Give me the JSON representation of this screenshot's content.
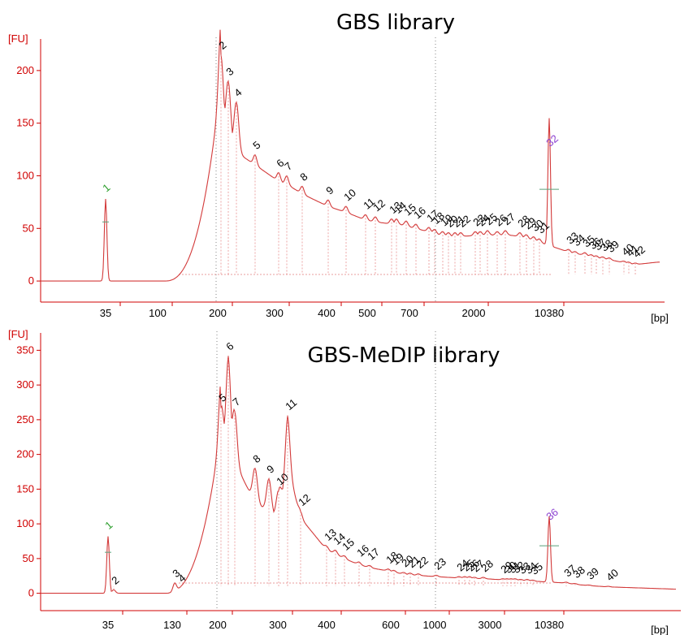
{
  "chart_data": [
    {
      "type": "line",
      "title": "GBS library",
      "ylabel": "[FU]",
      "xlabel": "[bp]",
      "ylim": [
        -20,
        230
      ],
      "yticks": [
        0,
        50,
        100,
        150,
        200
      ],
      "xticks": [
        {
          "label": "35",
          "pos": 130
        },
        {
          "label": "100",
          "pos": 194
        },
        {
          "label": "200",
          "pos": 268
        },
        {
          "label": "300",
          "pos": 338
        },
        {
          "label": "400",
          "pos": 402
        },
        {
          "label": "500",
          "pos": 452
        },
        {
          "label": "700",
          "pos": 504
        },
        {
          "label": "2000",
          "pos": 583
        },
        {
          "label": "10380",
          "pos": 676
        }
      ],
      "marker_peaks": [
        {
          "label": "1",
          "x": 130,
          "y": 78,
          "color": "#2a9d2a"
        },
        {
          "label": "32",
          "x": 676,
          "y": 121,
          "color": "#8a3fd0"
        }
      ],
      "peaks": [
        {
          "label": "2",
          "x": 272,
          "y": 215
        },
        {
          "label": "3",
          "x": 281,
          "y": 190
        },
        {
          "label": "4",
          "x": 291,
          "y": 170
        },
        {
          "label": "5",
          "x": 314,
          "y": 120
        },
        {
          "label": "6",
          "x": 343,
          "y": 103
        },
        {
          "label": "7",
          "x": 353,
          "y": 100
        },
        {
          "label": "8",
          "x": 372,
          "y": 90
        },
        {
          "label": "9",
          "x": 404,
          "y": 77
        },
        {
          "label": "10",
          "x": 426,
          "y": 71
        },
        {
          "label": "11",
          "x": 450,
          "y": 63
        },
        {
          "label": "12",
          "x": 462,
          "y": 61
        },
        {
          "label": "13",
          "x": 482,
          "y": 59
        },
        {
          "label": "14",
          "x": 488,
          "y": 59
        },
        {
          "label": "15",
          "x": 500,
          "y": 57
        },
        {
          "label": "16",
          "x": 512,
          "y": 54
        },
        {
          "label": "17",
          "x": 528,
          "y": 51
        },
        {
          "label": "18",
          "x": 535,
          "y": 49
        },
        {
          "label": "19",
          "x": 545,
          "y": 47
        },
        {
          "label": "20",
          "x": 552,
          "y": 46
        },
        {
          "label": "21",
          "x": 560,
          "y": 46
        },
        {
          "label": "22",
          "x": 567,
          "y": 46
        },
        {
          "label": "23",
          "x": 585,
          "y": 47
        },
        {
          "label": "24",
          "x": 591,
          "y": 47
        },
        {
          "label": "25",
          "x": 600,
          "y": 48
        },
        {
          "label": "26",
          "x": 612,
          "y": 47
        },
        {
          "label": "27",
          "x": 622,
          "y": 48
        },
        {
          "label": "28",
          "x": 640,
          "y": 46
        },
        {
          "label": "29",
          "x": 648,
          "y": 44
        },
        {
          "label": "30",
          "x": 657,
          "y": 42
        },
        {
          "label": "31",
          "x": 664,
          "y": 40
        },
        {
          "label": "33",
          "x": 700,
          "y": 30
        },
        {
          "label": "34",
          "x": 708,
          "y": 28
        },
        {
          "label": "35",
          "x": 720,
          "y": 27
        },
        {
          "label": "36",
          "x": 728,
          "y": 25
        },
        {
          "label": "37",
          "x": 734,
          "y": 24
        },
        {
          "label": "38",
          "x": 742,
          "y": 23
        },
        {
          "label": "39",
          "x": 750,
          "y": 22
        },
        {
          "label": "40",
          "x": 768,
          "y": 19
        },
        {
          "label": "41",
          "x": 774,
          "y": 18
        },
        {
          "label": "42",
          "x": 782,
          "y": 17
        }
      ]
    },
    {
      "type": "line",
      "title": "GBS-MeDIP library",
      "ylabel": "[FU]",
      "xlabel": "[bp]",
      "ylim": [
        -25,
        375
      ],
      "yticks": [
        0,
        50,
        100,
        150,
        200,
        250,
        300,
        350
      ],
      "xticks": [
        {
          "label": "35",
          "pos": 133
        },
        {
          "label": "130",
          "pos": 212
        },
        {
          "label": "200",
          "pos": 268
        },
        {
          "label": "300",
          "pos": 342
        },
        {
          "label": "400",
          "pos": 402
        },
        {
          "label": "600",
          "pos": 481
        },
        {
          "label": "1000",
          "pos": 535
        },
        {
          "label": "3000",
          "pos": 603
        },
        {
          "label": "10380",
          "pos": 676
        }
      ],
      "marker_peaks": [
        {
          "label": "1",
          "x": 133,
          "y": 82,
          "color": "#2a9d2a"
        },
        {
          "label": "36",
          "x": 676,
          "y": 95,
          "color": "#8a3fd0"
        }
      ],
      "peaks": [
        {
          "label": "2",
          "x": 140,
          "y": 5
        },
        {
          "label": "3",
          "x": 215,
          "y": 15
        },
        {
          "label": "4",
          "x": 222,
          "y": 8
        },
        {
          "label": "5",
          "x": 272,
          "y": 268
        },
        {
          "label": "6",
          "x": 281,
          "y": 342
        },
        {
          "label": "7",
          "x": 289,
          "y": 262
        },
        {
          "label": "8",
          "x": 314,
          "y": 180
        },
        {
          "label": "9",
          "x": 331,
          "y": 165
        },
        {
          "label": "10",
          "x": 343,
          "y": 148
        },
        {
          "label": "11",
          "x": 354,
          "y": 256
        },
        {
          "label": "12",
          "x": 370,
          "y": 118
        },
        {
          "label": "13",
          "x": 402,
          "y": 68
        },
        {
          "label": "14",
          "x": 413,
          "y": 62
        },
        {
          "label": "15",
          "x": 424,
          "y": 54
        },
        {
          "label": "16",
          "x": 442,
          "y": 45
        },
        {
          "label": "17",
          "x": 455,
          "y": 40
        },
        {
          "label": "18",
          "x": 478,
          "y": 35
        },
        {
          "label": "19",
          "x": 485,
          "y": 33
        },
        {
          "label": "20",
          "x": 497,
          "y": 30
        },
        {
          "label": "21",
          "x": 505,
          "y": 29
        },
        {
          "label": "22",
          "x": 515,
          "y": 28
        },
        {
          "label": "23",
          "x": 537,
          "y": 26
        },
        {
          "label": "24",
          "x": 565,
          "y": 24
        },
        {
          "label": "25",
          "x": 572,
          "y": 24
        },
        {
          "label": "26",
          "x": 578,
          "y": 24
        },
        {
          "label": "27",
          "x": 584,
          "y": 23
        },
        {
          "label": "28",
          "x": 595,
          "y": 23
        },
        {
          "label": "29",
          "x": 619,
          "y": 21
        },
        {
          "label": "30",
          "x": 624,
          "y": 21
        },
        {
          "label": "31",
          "x": 629,
          "y": 21
        },
        {
          "label": "32",
          "x": 634,
          "y": 21
        },
        {
          "label": "33",
          "x": 641,
          "y": 20
        },
        {
          "label": "34",
          "x": 649,
          "y": 20
        },
        {
          "label": "35",
          "x": 656,
          "y": 19
        },
        {
          "label": "37",
          "x": 697,
          "y": 16
        },
        {
          "label": "38",
          "x": 708,
          "y": 14
        },
        {
          "label": "39",
          "x": 725,
          "y": 12
        },
        {
          "label": "40",
          "x": 749,
          "y": 10
        }
      ]
    }
  ]
}
